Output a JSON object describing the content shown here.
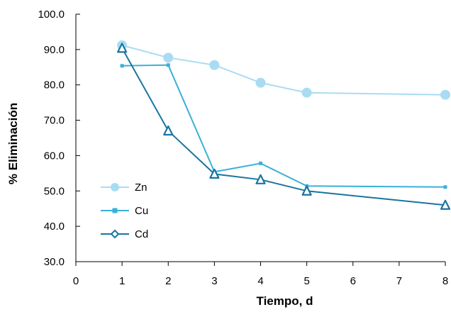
{
  "chart_data": {
    "type": "line",
    "xlabel": "Tiempo, d",
    "ylabel": "% Eliminación",
    "xlim": [
      0,
      8
    ],
    "ylim": [
      30,
      100
    ],
    "xticks": [
      "0",
      "1",
      "2",
      "3",
      "4",
      "5",
      "6",
      "7",
      "8"
    ],
    "yticks": [
      "30.0",
      "40.0",
      "50.0",
      "60.0",
      "70.0",
      "80.0",
      "90.0",
      "100.0"
    ],
    "grid": false,
    "legend_position": "lower-left",
    "series": [
      {
        "name": "Zn",
        "marker": "circle",
        "color": "#a9dcf2",
        "x": [
          1,
          2,
          3,
          4,
          5,
          8
        ],
        "y": [
          91.2,
          87.7,
          85.6,
          80.6,
          77.8,
          77.2
        ]
      },
      {
        "name": "Cu",
        "marker": "square",
        "color": "#3ab0d8",
        "x": [
          1,
          2,
          3,
          4,
          5,
          8
        ],
        "y": [
          85.4,
          85.6,
          55.4,
          57.8,
          51.4,
          51.1
        ]
      },
      {
        "name": "Cd",
        "marker": "triangle",
        "color": "#1a75a0",
        "x": [
          1,
          2,
          3,
          4,
          5,
          8
        ],
        "y": [
          90.4,
          67.0,
          54.8,
          53.2,
          50.0,
          46.0
        ]
      }
    ]
  }
}
